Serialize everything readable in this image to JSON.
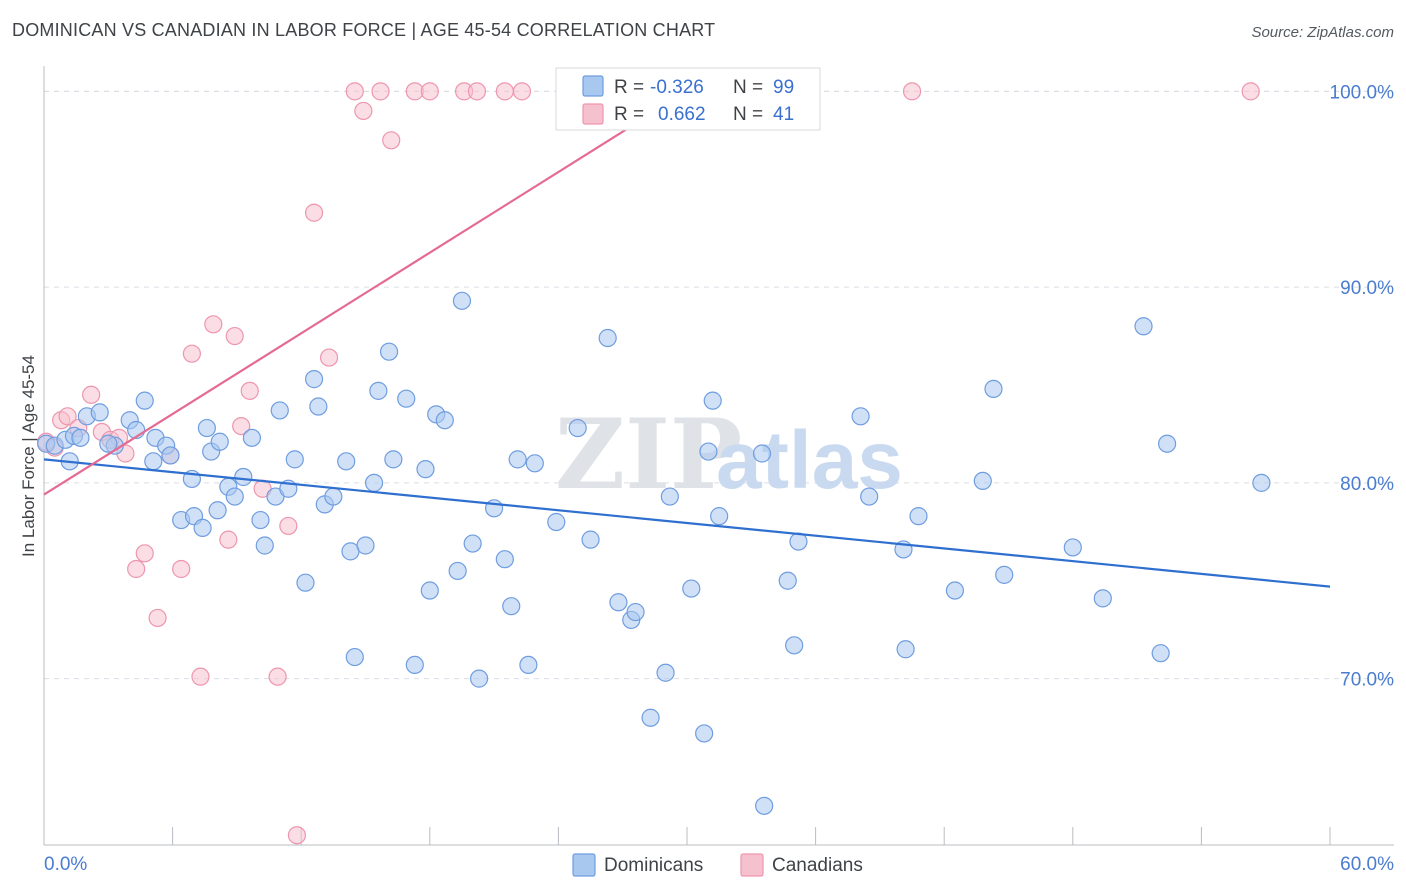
{
  "header": {
    "title": "DOMINICAN VS CANADIAN IN LABOR FORCE | AGE 45-54 CORRELATION CHART",
    "source": "Source: ZipAtlas.com"
  },
  "watermark": {
    "zip": "ZIP",
    "atlas": "atlas"
  },
  "colors": {
    "dominicans_fill": "#a9c8f0",
    "dominicans_stroke": "#6f9de0",
    "dominicans_line": "#2e6fd0",
    "canadians_fill": "#f6c1cf",
    "canadians_stroke": "#ee96ae",
    "canadians_line": "#e56a92",
    "tick_text": "#4a7ccf",
    "grid": "#d9dde2"
  },
  "legend": {
    "row1": {
      "r_label": "R =",
      "r_value": "-0.326",
      "n_label": "N =",
      "n_value": "99"
    },
    "row2": {
      "r_label": "R =",
      "r_value": "0.662",
      "n_label": "N =",
      "n_value": "41"
    }
  },
  "bottom_legend": {
    "series1": "Dominicans",
    "series2": "Canadians"
  },
  "chart_data": {
    "type": "scatter",
    "title": "DOMINICAN VS CANADIAN IN LABOR FORCE | AGE 45-54 CORRELATION CHART",
    "xlabel": "",
    "ylabel": "In Labor Force | Age 45-54",
    "xlim": [
      0,
      60
    ],
    "ylim": [
      61.5,
      101.5
    ],
    "x_tick_labels": [
      "0.0%",
      "60.0%"
    ],
    "y_ticks": [
      70,
      80,
      90,
      100
    ],
    "y_tick_labels": [
      "70.0%",
      "80.0%",
      "90.0%",
      "100.0%"
    ],
    "grid": true,
    "legend_placement": "top-center",
    "series": [
      {
        "name": "Dominicans",
        "r": -0.326,
        "n": 99,
        "trend": [
          [
            0,
            81.2
          ],
          [
            60,
            74.7
          ]
        ],
        "points": [
          [
            0.1,
            82.0
          ],
          [
            0.5,
            81.9
          ],
          [
            1.0,
            82.2
          ],
          [
            1.4,
            82.4
          ],
          [
            2.0,
            83.4
          ],
          [
            2.6,
            83.6
          ],
          [
            1.2,
            81.1
          ],
          [
            3.3,
            81.9
          ],
          [
            4.0,
            83.2
          ],
          [
            4.3,
            82.7
          ],
          [
            4.7,
            84.2
          ],
          [
            5.1,
            81.1
          ],
          [
            5.2,
            82.3
          ],
          [
            5.7,
            81.9
          ],
          [
            5.9,
            81.4
          ],
          [
            6.4,
            78.1
          ],
          [
            6.9,
            80.2
          ],
          [
            7.0,
            78.3
          ],
          [
            7.4,
            77.7
          ],
          [
            7.6,
            82.8
          ],
          [
            7.8,
            81.6
          ],
          [
            8.1,
            78.6
          ],
          [
            8.2,
            82.1
          ],
          [
            8.6,
            79.8
          ],
          [
            8.9,
            79.3
          ],
          [
            9.3,
            80.3
          ],
          [
            9.7,
            82.3
          ],
          [
            10.1,
            78.1
          ],
          [
            10.3,
            76.8
          ],
          [
            10.8,
            79.3
          ],
          [
            11.0,
            83.7
          ],
          [
            11.4,
            79.7
          ],
          [
            11.7,
            81.2
          ],
          [
            12.2,
            74.9
          ],
          [
            12.6,
            85.3
          ],
          [
            12.8,
            83.9
          ],
          [
            13.1,
            78.9
          ],
          [
            13.5,
            79.3
          ],
          [
            14.1,
            81.1
          ],
          [
            14.3,
            76.5
          ],
          [
            14.5,
            71.1
          ],
          [
            15.0,
            76.8
          ],
          [
            15.4,
            80.0
          ],
          [
            15.6,
            84.7
          ],
          [
            16.1,
            86.7
          ],
          [
            16.3,
            81.2
          ],
          [
            16.9,
            84.3
          ],
          [
            17.3,
            70.7
          ],
          [
            17.8,
            80.7
          ],
          [
            18.0,
            74.5
          ],
          [
            18.3,
            83.5
          ],
          [
            18.7,
            83.2
          ],
          [
            19.3,
            75.5
          ],
          [
            19.5,
            89.3
          ],
          [
            20.0,
            76.9
          ],
          [
            20.3,
            70.0
          ],
          [
            21.0,
            78.7
          ],
          [
            21.5,
            76.1
          ],
          [
            21.8,
            73.7
          ],
          [
            22.1,
            81.2
          ],
          [
            22.6,
            70.7
          ],
          [
            22.9,
            81.0
          ],
          [
            23.9,
            78.0
          ],
          [
            24.9,
            82.8
          ],
          [
            25.5,
            77.1
          ],
          [
            26.3,
            87.4
          ],
          [
            26.8,
            73.9
          ],
          [
            27.4,
            73.0
          ],
          [
            27.6,
            73.4
          ],
          [
            28.3,
            68.0
          ],
          [
            29.0,
            70.3
          ],
          [
            29.2,
            79.3
          ],
          [
            30.2,
            74.6
          ],
          [
            30.8,
            67.2
          ],
          [
            31.0,
            81.6
          ],
          [
            31.2,
            84.2
          ],
          [
            31.5,
            78.3
          ],
          [
            33.5,
            81.5
          ],
          [
            33.6,
            63.5
          ],
          [
            34.7,
            75.0
          ],
          [
            35.0,
            71.7
          ],
          [
            35.2,
            77.0
          ],
          [
            38.1,
            83.4
          ],
          [
            38.5,
            79.3
          ],
          [
            40.1,
            76.6
          ],
          [
            40.2,
            71.5
          ],
          [
            40.8,
            78.3
          ],
          [
            42.5,
            74.5
          ],
          [
            43.8,
            80.1
          ],
          [
            44.3,
            84.8
          ],
          [
            44.8,
            75.3
          ],
          [
            48.0,
            76.7
          ],
          [
            49.4,
            74.1
          ],
          [
            51.3,
            88.0
          ],
          [
            52.1,
            71.3
          ],
          [
            52.4,
            82.0
          ],
          [
            56.8,
            80.0
          ],
          [
            1.7,
            82.3
          ],
          [
            3.0,
            82.0
          ]
        ]
      },
      {
        "name": "Canadians",
        "r": 0.662,
        "n": 41,
        "trend": [
          [
            0,
            79.4
          ],
          [
            30,
            100.0
          ]
        ],
        "points": [
          [
            0.1,
            82.1
          ],
          [
            0.5,
            81.8
          ],
          [
            0.8,
            83.2
          ],
          [
            1.1,
            83.4
          ],
          [
            1.6,
            82.8
          ],
          [
            2.2,
            84.5
          ],
          [
            2.7,
            82.6
          ],
          [
            3.1,
            82.2
          ],
          [
            3.5,
            82.3
          ],
          [
            3.8,
            81.5
          ],
          [
            4.3,
            75.6
          ],
          [
            4.7,
            76.4
          ],
          [
            5.3,
            73.1
          ],
          [
            5.9,
            81.4
          ],
          [
            6.4,
            75.6
          ],
          [
            6.9,
            86.6
          ],
          [
            7.3,
            70.1
          ],
          [
            7.9,
            88.1
          ],
          [
            8.6,
            77.1
          ],
          [
            8.9,
            87.5
          ],
          [
            9.2,
            82.9
          ],
          [
            9.6,
            84.7
          ],
          [
            10.2,
            79.7
          ],
          [
            10.9,
            70.1
          ],
          [
            11.4,
            77.8
          ],
          [
            11.8,
            62.0
          ],
          [
            12.6,
            93.8
          ],
          [
            13.3,
            86.4
          ],
          [
            14.5,
            100.0
          ],
          [
            14.9,
            99.0
          ],
          [
            15.7,
            100.0
          ],
          [
            16.2,
            97.5
          ],
          [
            17.3,
            100.0
          ],
          [
            18.0,
            100.0
          ],
          [
            19.6,
            100.0
          ],
          [
            20.2,
            100.0
          ],
          [
            21.5,
            100.0
          ],
          [
            22.3,
            100.0
          ],
          [
            24.6,
            100.0
          ],
          [
            40.5,
            100.0
          ],
          [
            56.3,
            100.0
          ]
        ]
      }
    ]
  }
}
